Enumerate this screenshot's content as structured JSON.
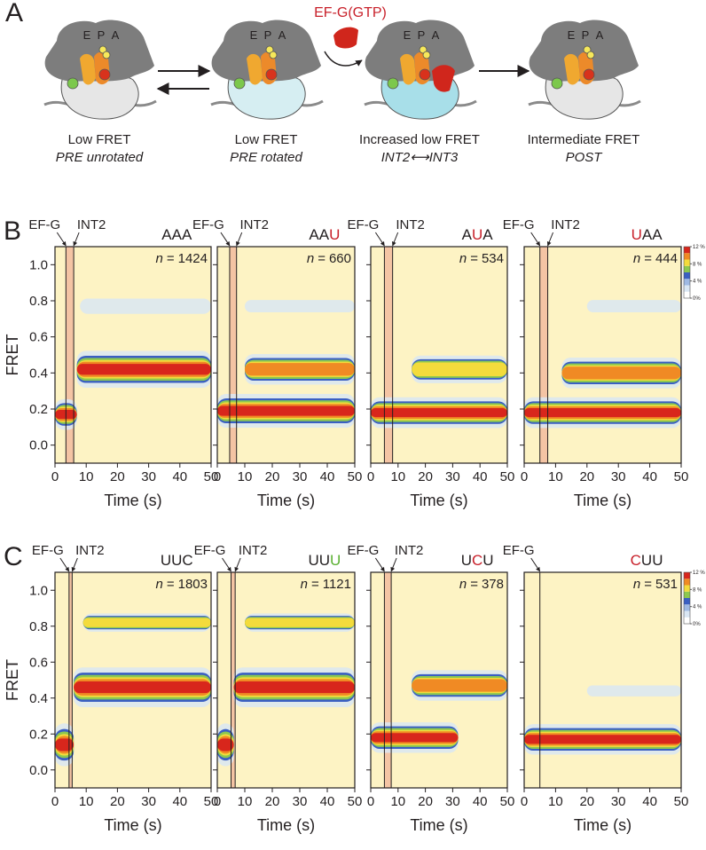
{
  "panel_labels": [
    "A",
    "B",
    "C"
  ],
  "panel_a": {
    "ef_g": "EF-G(GTP)",
    "sites": [
      "E",
      "P",
      "A"
    ],
    "states": [
      {
        "label": "Low FRET",
        "sublabel": "PRE unrotated"
      },
      {
        "label": "Low FRET",
        "sublabel": "PRE rotated"
      },
      {
        "label": "Increased low FRET",
        "sublabel": "INT2⟷INT3"
      },
      {
        "label": "Intermediate FRET",
        "sublabel": "POST"
      }
    ]
  },
  "chart_data": [
    {
      "type": "heatmap",
      "codon": [
        "A",
        "A",
        "A"
      ],
      "codon_colors": [
        "#231f20",
        "#231f20",
        "#231f20"
      ],
      "sample_size": {
        "symbol": "n",
        "sign": "=",
        "value": 1424
      },
      "markers": [
        {
          "label": "EF-G",
          "x": 3.5
        },
        {
          "label": "INT2",
          "x": 6
        }
      ],
      "xlabel": "Time (s)",
      "ylabel": "FRET",
      "ytick_labels": true,
      "xlim": [
        0,
        50
      ],
      "xticks": [
        0,
        10,
        20,
        30,
        40,
        50
      ],
      "ylim": [
        -0.1,
        1.1
      ],
      "yticks": [
        {
          "value": 0,
          "label": "0.0"
        },
        0.2,
        0.4,
        0.6,
        0.8,
        {
          "value": 1,
          "label": "1.0"
        }
      ],
      "bands": [
        {
          "fret": 0.17,
          "width": 0.05,
          "start": 0,
          "end": 7,
          "peak": 12
        },
        {
          "fret": 0.42,
          "width": 0.06,
          "start": 7,
          "end": 50,
          "peak": 12
        },
        {
          "fret": 0.77,
          "width": 0.025,
          "start": 8,
          "end": 50,
          "peak": 2
        }
      ]
    },
    {
      "type": "heatmap",
      "codon": [
        "A",
        "A",
        "U"
      ],
      "codon_colors": [
        "#231f20",
        "#231f20",
        "#c8202a"
      ],
      "sample_size": {
        "symbol": "n",
        "sign": "=",
        "value": 660
      },
      "markers": [
        {
          "label": "EF-G",
          "x": 4.5
        },
        {
          "label": "INT2",
          "x": 7
        }
      ],
      "xlabel": "Time (s)",
      "ytick_labels": false,
      "xlim": [
        0,
        50
      ],
      "xticks": [
        0,
        10,
        20,
        30,
        40,
        50
      ],
      "ylim": [
        -0.1,
        1.1
      ],
      "yticks": [
        {
          "value": 0,
          "label": "0.0"
        },
        0.2,
        0.4,
        0.6,
        0.8,
        {
          "value": 1,
          "label": "1.0"
        }
      ],
      "bands": [
        {
          "fret": 0.19,
          "width": 0.055,
          "start": 0,
          "end": 50,
          "peak": 11
        },
        {
          "fret": 0.42,
          "width": 0.05,
          "start": 10,
          "end": 50,
          "peak": 9
        },
        {
          "fret": 0.77,
          "width": 0.02,
          "start": 10,
          "end": 50,
          "peak": 1
        }
      ]
    },
    {
      "type": "heatmap",
      "codon": [
        "A",
        "U",
        "A"
      ],
      "codon_colors": [
        "#231f20",
        "#c8202a",
        "#231f20"
      ],
      "sample_size": {
        "symbol": "n",
        "sign": "=",
        "value": 534
      },
      "markers": [
        {
          "label": "EF-G",
          "x": 5
        },
        {
          "label": "INT2",
          "x": 8
        }
      ],
      "xlabel": "Time (s)",
      "ytick_labels": false,
      "xlim": [
        0,
        50
      ],
      "xticks": [
        0,
        10,
        20,
        30,
        40,
        50
      ],
      "ylim": [
        -0.1,
        1.1
      ],
      "yticks": [
        {
          "value": 0,
          "label": "0.0"
        },
        0.2,
        0.4,
        0.6,
        0.8,
        {
          "value": 1,
          "label": "1.0"
        }
      ],
      "bands": [
        {
          "fret": 0.18,
          "width": 0.05,
          "start": 0,
          "end": 50,
          "peak": 12
        },
        {
          "fret": 0.42,
          "width": 0.045,
          "start": 15,
          "end": 50,
          "peak": 7
        }
      ]
    },
    {
      "type": "heatmap",
      "codon": [
        "U",
        "A",
        "A"
      ],
      "codon_colors": [
        "#c8202a",
        "#231f20",
        "#231f20"
      ],
      "sample_size": {
        "symbol": "n",
        "sign": "=",
        "value": 444
      },
      "markers": [
        {
          "label": "EF-G",
          "x": 5
        },
        {
          "label": "INT2",
          "x": 7.5
        }
      ],
      "xlabel": "Time (s)",
      "ytick_labels": false,
      "xlim": [
        0,
        50
      ],
      "xticks": [
        0,
        10,
        20,
        30,
        40,
        50
      ],
      "ylim": [
        -0.1,
        1.1
      ],
      "yticks": [
        {
          "value": 0,
          "label": "0.0"
        },
        0.2,
        0.4,
        0.6,
        0.8,
        {
          "value": 1,
          "label": "1.0"
        }
      ],
      "bands": [
        {
          "fret": 0.18,
          "width": 0.05,
          "start": 0,
          "end": 50,
          "peak": 12
        },
        {
          "fret": 0.4,
          "width": 0.05,
          "start": 12,
          "end": 50,
          "peak": 10
        },
        {
          "fret": 0.77,
          "width": 0.02,
          "start": 20,
          "end": 50,
          "peak": 1
        }
      ],
      "colorbar": {
        "lim": [
          0,
          12
        ],
        "colors": [
          "#ffffff",
          "#d9e6f3",
          "#9fb9e3",
          "#3a5fc2",
          "#8cc850",
          "#f3db3c",
          "#f08a24",
          "#d8261c"
        ],
        "ticks": [
          {
            "value": 0,
            "label": "0%"
          },
          {
            "value": 4,
            "label": "4 %"
          },
          {
            "value": 8,
            "label": "8 %"
          },
          {
            "value": 12,
            "label": "12 %"
          }
        ]
      }
    },
    {
      "type": "heatmap",
      "codon": [
        "U",
        "U",
        "C"
      ],
      "codon_colors": [
        "#231f20",
        "#231f20",
        "#231f20"
      ],
      "sample_size": {
        "symbol": "n",
        "sign": "=",
        "value": 1803
      },
      "markers": [
        {
          "label": "EF-G",
          "x": 4.5
        },
        {
          "label": "INT2",
          "x": 5.5
        }
      ],
      "xlabel": "Time (s)",
      "ylabel": "FRET",
      "ytick_labels": true,
      "xlim": [
        0,
        50
      ],
      "xticks": [
        0,
        10,
        20,
        30,
        40,
        50
      ],
      "ylim": [
        -0.1,
        1.1
      ],
      "yticks": [
        {
          "value": 0,
          "label": "0.0"
        },
        0.2,
        0.4,
        0.6,
        0.8,
        {
          "value": 1,
          "label": "1.0"
        }
      ],
      "bands": [
        {
          "fret": 0.14,
          "width": 0.07,
          "start": 0,
          "end": 6,
          "peak": 12
        },
        {
          "fret": 0.46,
          "width": 0.065,
          "start": 6,
          "end": 50,
          "peak": 12
        },
        {
          "fret": 0.82,
          "width": 0.03,
          "start": 9,
          "end": 50,
          "peak": 7
        }
      ]
    },
    {
      "type": "heatmap",
      "codon": [
        "U",
        "U",
        "U"
      ],
      "codon_colors": [
        "#231f20",
        "#231f20",
        "#5ab031"
      ],
      "sample_size": {
        "symbol": "n",
        "sign": "=",
        "value": 1121
      },
      "markers": [
        {
          "label": "EF-G",
          "x": 5
        },
        {
          "label": "INT2",
          "x": 6.5
        }
      ],
      "xlabel": "Time (s)",
      "ytick_labels": false,
      "xlim": [
        0,
        50
      ],
      "xticks": [
        0,
        10,
        20,
        30,
        40,
        50
      ],
      "ylim": [
        -0.1,
        1.1
      ],
      "yticks": [
        {
          "value": 0,
          "label": "0.0"
        },
        0.2,
        0.4,
        0.6,
        0.8,
        {
          "value": 1,
          "label": "1.0"
        }
      ],
      "bands": [
        {
          "fret": 0.14,
          "width": 0.07,
          "start": 0,
          "end": 6,
          "peak": 12
        },
        {
          "fret": 0.46,
          "width": 0.065,
          "start": 6,
          "end": 50,
          "peak": 12
        },
        {
          "fret": 0.82,
          "width": 0.03,
          "start": 10,
          "end": 50,
          "peak": 7
        }
      ]
    },
    {
      "type": "heatmap",
      "codon": [
        "U",
        "C",
        "U"
      ],
      "codon_colors": [
        "#231f20",
        "#c8202a",
        "#231f20"
      ],
      "sample_size": {
        "symbol": "n",
        "sign": "=",
        "value": 378
      },
      "markers": [
        {
          "label": "EF-G",
          "x": 5
        },
        {
          "label": "INT2",
          "x": 7.5
        }
      ],
      "xlabel": "Time (s)",
      "ytick_labels": false,
      "xlim": [
        0,
        50
      ],
      "xticks": [
        0,
        10,
        20,
        30,
        40,
        50
      ],
      "ylim": [
        -0.1,
        1.1
      ],
      "yticks": [
        {
          "value": 0,
          "label": "0.0"
        },
        0.2,
        0.4,
        0.6,
        0.8,
        {
          "value": 1,
          "label": "1.0"
        }
      ],
      "bands": [
        {
          "fret": 0.18,
          "width": 0.05,
          "start": 0,
          "end": 32,
          "peak": 11
        },
        {
          "fret": 0.47,
          "width": 0.05,
          "start": 15,
          "end": 50,
          "peak": 10
        }
      ]
    },
    {
      "type": "heatmap",
      "codon": [
        "C",
        "U",
        "U"
      ],
      "codon_colors": [
        "#c8202a",
        "#231f20",
        "#231f20"
      ],
      "sample_size": {
        "symbol": "n",
        "sign": "=",
        "value": 531
      },
      "markers": [
        {
          "label": "EF-G",
          "x": 5
        }
      ],
      "xlabel": "Time (s)",
      "ytick_labels": false,
      "xlim": [
        0,
        50
      ],
      "xticks": [
        0,
        10,
        20,
        30,
        40,
        50
      ],
      "ylim": [
        -0.1,
        1.1
      ],
      "yticks": [
        {
          "value": 0,
          "label": "0.0"
        },
        0.2,
        0.4,
        0.6,
        0.8,
        {
          "value": 1,
          "label": "1.0"
        }
      ],
      "bands": [
        {
          "fret": 0.17,
          "width": 0.05,
          "start": 0,
          "end": 50,
          "peak": 12
        },
        {
          "fret": 0.44,
          "width": 0.018,
          "start": 20,
          "end": 50,
          "peak": 2
        }
      ],
      "colorbar": {
        "lim": [
          0,
          12
        ],
        "colors": [
          "#ffffff",
          "#d9e6f3",
          "#9fb9e3",
          "#3a5fc2",
          "#8cc850",
          "#f3db3c",
          "#f08a24",
          "#d8261c"
        ],
        "ticks": [
          {
            "value": 0,
            "label": "0%"
          },
          {
            "value": 4,
            "label": "4 %"
          },
          {
            "value": 8,
            "label": "8 %"
          },
          {
            "value": 12,
            "label": "12 %"
          }
        ]
      }
    }
  ]
}
